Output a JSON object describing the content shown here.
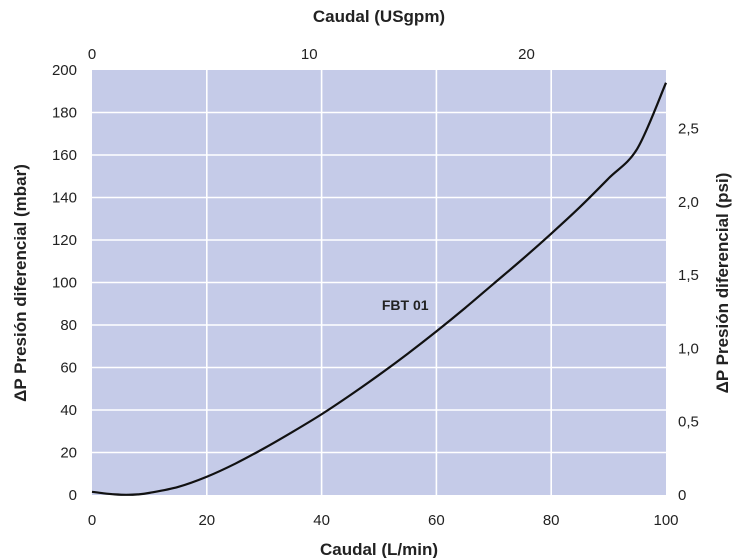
{
  "chart_data": {
    "type": "line",
    "colors": {
      "plot_background": "#c5cbe8",
      "grid": "#ffffff",
      "line": "#111111"
    },
    "grid": true,
    "x": {
      "label": "Caudal (L/min)",
      "range": [
        0,
        100
      ],
      "ticks": [
        0,
        20,
        40,
        60,
        80,
        100
      ],
      "tick_labels": [
        "0",
        "20",
        "40",
        "60",
        "80",
        "100"
      ]
    },
    "x_top": {
      "label": "Caudal (USgpm)",
      "range": [
        0,
        26.42
      ],
      "ticks": [
        0,
        10,
        20
      ],
      "tick_labels": [
        "0",
        "10",
        "20"
      ]
    },
    "y": {
      "label": "ΔP Presión diferencial (mbar)",
      "range": [
        0,
        200
      ],
      "ticks": [
        0,
        20,
        40,
        60,
        80,
        100,
        120,
        140,
        160,
        180,
        200
      ],
      "tick_labels": [
        "0",
        "20",
        "40",
        "60",
        "80",
        "100",
        "120",
        "140",
        "160",
        "180",
        "200"
      ]
    },
    "y_right": {
      "label": "ΔP Presión diferencial (psi)",
      "range": [
        0,
        2.9
      ],
      "ticks": [
        0,
        0.5,
        1.0,
        1.5,
        2.0,
        2.5
      ],
      "tick_labels": [
        "0",
        "0,5",
        "1,0",
        "1,5",
        "2,0",
        "2,5"
      ]
    },
    "series": [
      {
        "name": "FBT 01",
        "x": [
          0,
          2,
          4,
          6,
          8,
          10,
          15,
          20,
          25,
          30,
          35,
          40,
          45,
          50,
          55,
          60,
          65,
          70,
          75,
          80,
          85,
          90,
          95,
          100
        ],
        "y": [
          1.5,
          0.8,
          0.3,
          0.1,
          0.3,
          1.0,
          3.8,
          8.6,
          14.8,
          22.0,
          29.8,
          38.0,
          47.0,
          56.5,
          66.5,
          77.0,
          88.0,
          99.5,
          111.0,
          123.0,
          135.5,
          149.0,
          163.0,
          194.0
        ]
      }
    ],
    "annotations": [
      {
        "text": "FBT 01",
        "x": 50.5,
        "y": 87
      }
    ]
  }
}
